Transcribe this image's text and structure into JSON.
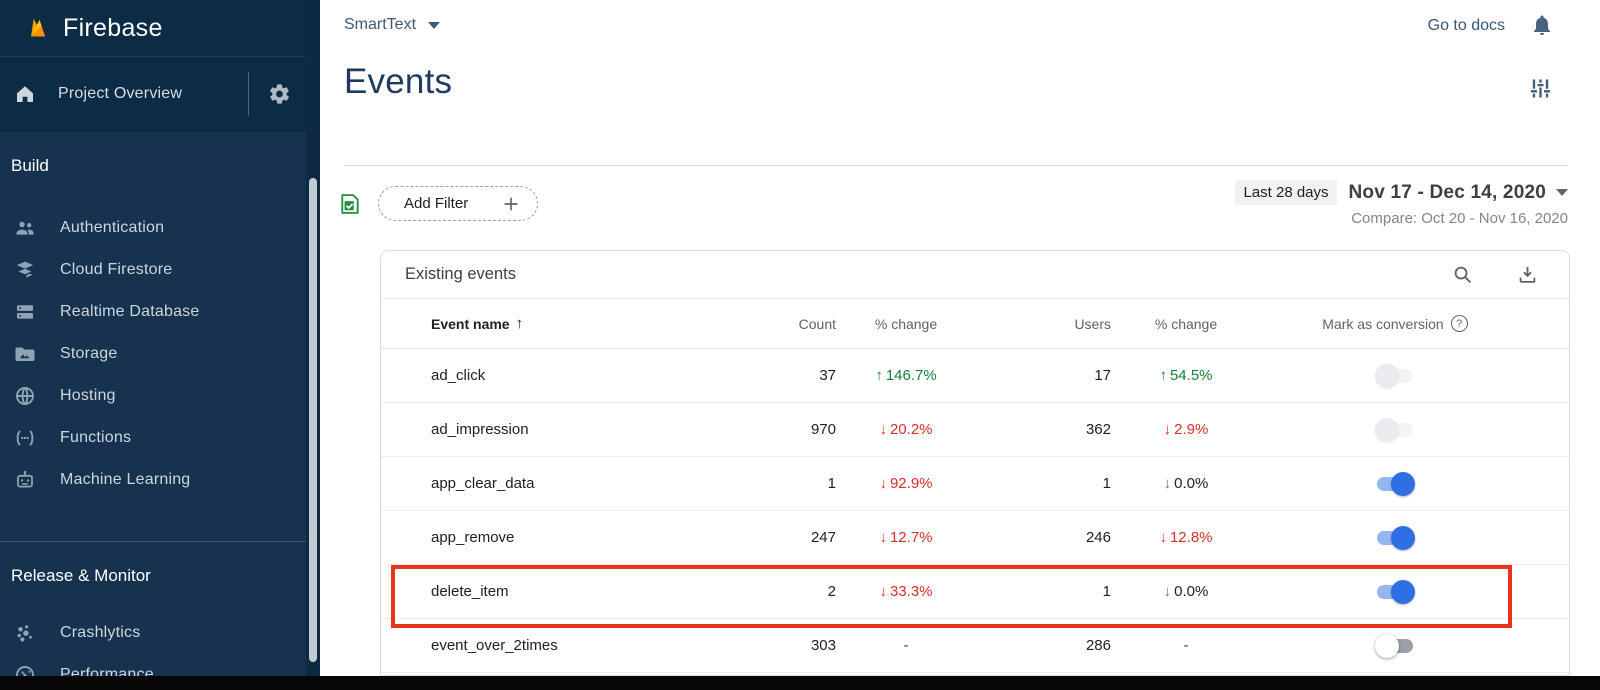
{
  "sidebar": {
    "brand": "Firebase",
    "project_overview": "Project Overview",
    "sections": [
      {
        "label": "Build",
        "items": [
          {
            "label": "Authentication",
            "icon": "users"
          },
          {
            "label": "Cloud Firestore",
            "icon": "firestore"
          },
          {
            "label": "Realtime Database",
            "icon": "database"
          },
          {
            "label": "Storage",
            "icon": "storage"
          },
          {
            "label": "Hosting",
            "icon": "hosting"
          },
          {
            "label": "Functions",
            "icon": "functions"
          },
          {
            "label": "Machine Learning",
            "icon": "machine-learning"
          }
        ]
      },
      {
        "label": "Release & Monitor",
        "items": [
          {
            "label": "Crashlytics",
            "icon": "crashlytics"
          },
          {
            "label": "Performance",
            "icon": "performance"
          }
        ]
      }
    ]
  },
  "header": {
    "project_name": "SmartText",
    "go_to_docs": "Go to docs",
    "page_title": "Events"
  },
  "filter_bar": {
    "add_filter_label": "Add Filter",
    "range_badge": "Last 28 days",
    "date_range": "Nov 17 - Dec 14, 2020",
    "compare": "Compare: Oct 20 - Nov 16, 2020"
  },
  "table": {
    "title": "Existing events",
    "sort_column": "Event name",
    "sort_direction": "ascending",
    "columns": {
      "event_name": "Event name",
      "count": "Count",
      "count_change": "% change",
      "users": "Users",
      "users_change": "% change",
      "conversion": "Mark as conversion"
    },
    "rows": [
      {
        "name": "ad_click",
        "count": "37",
        "change": {
          "dir": "up",
          "value": "146.7%",
          "tone": "green"
        },
        "users": "17",
        "users_change": {
          "dir": "up",
          "value": "54.5%",
          "tone": "green"
        },
        "conversion": "off-faint",
        "highlighted": false
      },
      {
        "name": "ad_impression",
        "count": "970",
        "change": {
          "dir": "down",
          "value": "20.2%",
          "tone": "red"
        },
        "users": "362",
        "users_change": {
          "dir": "down",
          "value": "2.9%",
          "tone": "red"
        },
        "conversion": "off-faint",
        "highlighted": false
      },
      {
        "name": "app_clear_data",
        "count": "1",
        "change": {
          "dir": "down",
          "value": "92.9%",
          "tone": "red"
        },
        "users": "1",
        "users_change": {
          "dir": "down",
          "value": "0.0%",
          "tone": "neutral"
        },
        "conversion": "on",
        "highlighted": false
      },
      {
        "name": "app_remove",
        "count": "247",
        "change": {
          "dir": "down",
          "value": "12.7%",
          "tone": "red"
        },
        "users": "246",
        "users_change": {
          "dir": "down",
          "value": "12.8%",
          "tone": "red"
        },
        "conversion": "on",
        "highlighted": false
      },
      {
        "name": "delete_item",
        "count": "2",
        "change": {
          "dir": "down",
          "value": "33.3%",
          "tone": "red"
        },
        "users": "1",
        "users_change": {
          "dir": "down",
          "value": "0.0%",
          "tone": "neutral"
        },
        "conversion": "on",
        "highlighted": true
      },
      {
        "name": "event_over_2times",
        "count": "303",
        "change": {
          "dir": "none",
          "value": "-",
          "tone": "dash"
        },
        "users": "286",
        "users_change": {
          "dir": "none",
          "value": "-",
          "tone": "dash"
        },
        "conversion": "off",
        "highlighted": false
      }
    ]
  },
  "colors": {
    "sidebar_bg": "#16324e",
    "sidebar_header_bg": "#0c2b45",
    "positive_green": "#188038",
    "negative_red": "#d93025",
    "toggle_on_blue": "#2e70e3",
    "highlight_red": "#e8341c",
    "title_navy": "#1e3a5f"
  }
}
